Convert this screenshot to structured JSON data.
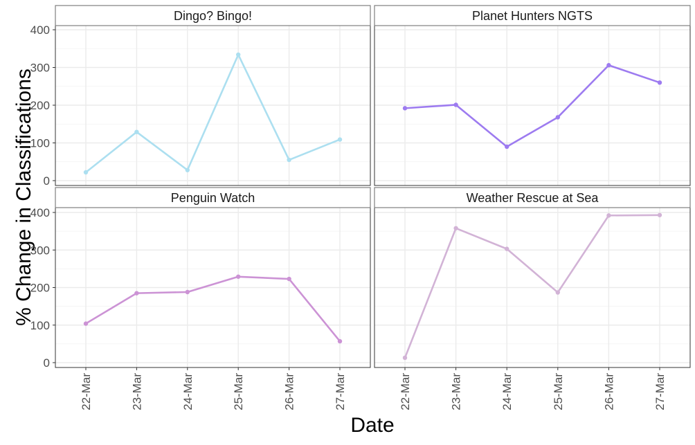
{
  "chart_data": {
    "type": "line",
    "xlabel": "Date",
    "ylabel": "% Change in Classifications",
    "categories": [
      "22-Mar",
      "23-Mar",
      "24-Mar",
      "25-Mar",
      "26-Mar",
      "27-Mar"
    ],
    "yticks": [
      0,
      100,
      200,
      300,
      400
    ],
    "ylim": [
      0,
      410
    ],
    "grid": true,
    "facets": [
      {
        "name": "Dingo? Bingo!",
        "color": "#acdff0",
        "values": [
          22,
          129,
          28,
          334,
          55,
          109
        ]
      },
      {
        "name": "Planet Hunters NGTS",
        "color": "#9d7bf0",
        "values": [
          192,
          201,
          90,
          168,
          306,
          260
        ]
      },
      {
        "name": "Penguin Watch",
        "color": "#cc93d5",
        "values": [
          104,
          185,
          188,
          229,
          223,
          57
        ]
      },
      {
        "name": "Weather Rescue at Sea",
        "color": "#d2b3d6",
        "values": [
          13,
          358,
          303,
          187,
          392,
          393
        ]
      }
    ]
  }
}
